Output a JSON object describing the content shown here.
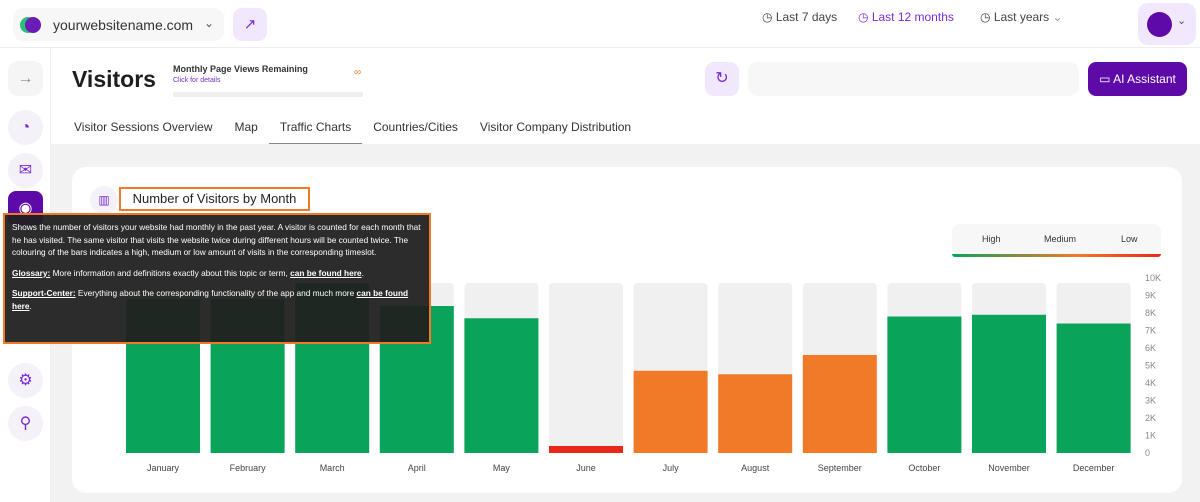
{
  "header": {
    "site": "yourwebsitename.com"
  },
  "page": {
    "title": "Visitors",
    "pageviews_label": "Monthly Page Views Remaining",
    "pageviews_link": "Click for details",
    "pageviews_value": "∞"
  },
  "ranges": [
    "Last 7 days",
    "Last 12 months",
    "Last years"
  ],
  "selected_range": "Last 12 months",
  "ai_button": "AI Assistant",
  "tabs": [
    "Visitor Sessions Overview",
    "Map",
    "Traffic Charts",
    "Countries/Cities",
    "Visitor Company Distribution"
  ],
  "active_tab": "Traffic Charts",
  "legend": {
    "high": "High",
    "medium": "Medium",
    "low": "Low"
  },
  "tooltip": {
    "text": "Shows the number of visitors your website had monthly in the past year. A visitor is counted for each month that he has visited. The same visitor that visits the website twice during different hours will be counted twice. The colouring of the bars indicates a high, medium or low amount of visits in the corresponding timeslot.",
    "glossary_label": "Glossary:",
    "glossary_text": " More information and definitions exactly about this topic or term, ",
    "glossary_link": "can be found here",
    "support_label": "Support-Center:",
    "support_text": " Everything about the corresponding functionality of the app and much more ",
    "support_link": "can be found here",
    "end": "."
  },
  "colors": {
    "high": "#0aa35a",
    "medium": "#f07a28",
    "low": "#e8291a",
    "accent": "#5d0aa8"
  },
  "chart_data": {
    "type": "bar",
    "title": "Number of Visitors by Month",
    "categories": [
      "January",
      "February",
      "March",
      "April",
      "May",
      "June",
      "July",
      "August",
      "September",
      "October",
      "November",
      "December"
    ],
    "values": [
      8800,
      8800,
      9700,
      8400,
      7700,
      400,
      4700,
      4500,
      5600,
      7800,
      7900,
      7400
    ],
    "levels": [
      "high",
      "high",
      "high",
      "high",
      "high",
      "low",
      "medium",
      "medium",
      "medium",
      "high",
      "high",
      "high"
    ],
    "ylim": [
      0,
      10000
    ],
    "yticks": [
      "0",
      "1K",
      "2K",
      "3K",
      "4K",
      "5K",
      "6K",
      "7K",
      "8K",
      "9K",
      "10K"
    ],
    "y_axis_side": "right",
    "legend": "top-right"
  }
}
